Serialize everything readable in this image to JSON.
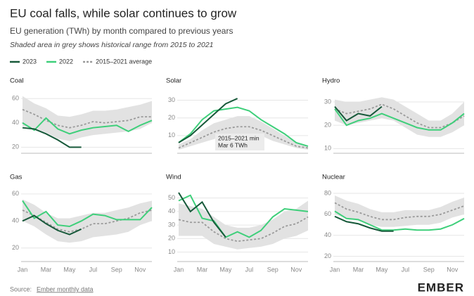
{
  "title": "EU coal falls, while solar continues to grow",
  "subtitle": "EU generation (TWh) by month compared to previous years",
  "note": "Shaded area in grey shows historical range from 2015 to 2021",
  "legend": [
    {
      "name": "2023",
      "color": "#17593a"
    },
    {
      "name": "2022",
      "color": "#3ecf7a"
    },
    {
      "name": "2015–2021 average",
      "color": "#9a9a9a",
      "dash": true
    }
  ],
  "source": {
    "label": "Source:",
    "link": "Ember monthly data"
  },
  "logo": "EMBER",
  "range_color": "#e2e2e2",
  "chart_data": [
    {
      "type": "line",
      "title": "Coal",
      "ylim": [
        15,
        63
      ],
      "yticks": [
        20,
        40,
        60
      ],
      "grid": true,
      "range": {
        "low": [
          37,
          36,
          32,
          27,
          25,
          28,
          30,
          31,
          32,
          33,
          35,
          40
        ],
        "high": [
          62,
          56,
          52,
          46,
          45,
          47,
          50,
          50,
          51,
          53,
          55,
          58
        ]
      },
      "series": [
        {
          "color": "#9a9a9a",
          "dash": true,
          "values": [
            51,
            47,
            42,
            38,
            36,
            38,
            41,
            40,
            41,
            42,
            45,
            45
          ]
        },
        {
          "color": "#3ecf7a",
          "values": [
            40,
            34,
            44,
            35,
            31,
            34,
            36,
            37,
            38,
            33,
            38,
            42
          ]
        },
        {
          "color": "#17593a",
          "values": [
            36,
            35,
            31,
            26,
            20,
            20,
            null,
            null,
            null,
            null,
            null,
            null
          ]
        }
      ]
    },
    {
      "type": "line",
      "title": "Solar",
      "ylim": [
        0,
        33
      ],
      "yticks": [
        10,
        20,
        30
      ],
      "grid": true,
      "annotation": [
        "2015–2021 min",
        "Mar 6 TWh"
      ],
      "range": {
        "low": [
          2,
          4,
          6,
          8,
          10,
          11,
          11,
          10,
          7,
          5,
          3,
          2
        ],
        "high": [
          5,
          8,
          13,
          17,
          19,
          21,
          21,
          18,
          14,
          10,
          6,
          4
        ]
      },
      "series": [
        {
          "color": "#9a9a9a",
          "dash": true,
          "values": [
            3,
            6,
            9,
            12,
            14,
            15,
            15,
            13,
            10,
            7,
            4,
            3
          ]
        },
        {
          "color": "#3ecf7a",
          "values": [
            6,
            11,
            19,
            24,
            25,
            26,
            24,
            19,
            15,
            11,
            6,
            4
          ]
        },
        {
          "color": "#17593a",
          "values": [
            6,
            10,
            16,
            22,
            28,
            31,
            null,
            null,
            null,
            null,
            null,
            null
          ]
        }
      ]
    },
    {
      "type": "line",
      "title": "Hydro",
      "ylim": [
        8,
        33
      ],
      "yticks": [
        10,
        20,
        30
      ],
      "grid": true,
      "range": {
        "low": [
          22,
          20,
          21,
          22,
          23,
          22,
          19,
          16,
          15,
          15,
          17,
          20
        ],
        "high": [
          31,
          30,
          30,
          31,
          32,
          31,
          28,
          25,
          22,
          22,
          25,
          30
        ]
      },
      "series": [
        {
          "color": "#9a9a9a",
          "dash": true,
          "values": [
            27,
            25,
            26,
            27,
            29,
            27,
            24,
            21,
            19,
            19,
            21,
            24
          ]
        },
        {
          "color": "#3ecf7a",
          "values": [
            27,
            20,
            22,
            23,
            25,
            23,
            21,
            19,
            18,
            18,
            21,
            25
          ]
        },
        {
          "color": "#17593a",
          "values": [
            28,
            22,
            25,
            24,
            28,
            null,
            null,
            null,
            null,
            null,
            null,
            null
          ]
        }
      ]
    },
    {
      "type": "line",
      "title": "Gas",
      "ylim": [
        10,
        62
      ],
      "yticks": [
        20,
        40,
        60
      ],
      "grid": true,
      "categories": [
        "Jan",
        null,
        "Mar",
        null,
        "May",
        null,
        "Jul",
        null,
        "Sep",
        null,
        "Nov",
        null
      ],
      "range": {
        "low": [
          40,
          36,
          30,
          25,
          24,
          25,
          28,
          29,
          30,
          32,
          37,
          40
        ],
        "high": [
          56,
          52,
          46,
          42,
          42,
          44,
          46,
          46,
          48,
          50,
          53,
          55
        ]
      },
      "series": [
        {
          "color": "#9a9a9a",
          "dash": true,
          "values": [
            48,
            44,
            39,
            34,
            32,
            34,
            38,
            38,
            40,
            42,
            46,
            48
          ]
        },
        {
          "color": "#3ecf7a",
          "values": [
            55,
            42,
            47,
            37,
            36,
            40,
            45,
            44,
            41,
            41,
            41,
            50
          ]
        },
        {
          "color": "#17593a",
          "values": [
            40,
            44,
            38,
            33,
            30,
            34,
            null,
            null,
            null,
            null,
            null,
            null
          ]
        }
      ]
    },
    {
      "type": "line",
      "title": "Wind",
      "ylim": [
        3,
        55
      ],
      "yticks": [
        10,
        20,
        30,
        40,
        50
      ],
      "grid": true,
      "categories": [
        "Jan",
        null,
        "Mar",
        null,
        "May",
        null,
        "Jul",
        null,
        "Sep",
        null,
        "Nov",
        null
      ],
      "range": {
        "low": [
          22,
          22,
          22,
          16,
          14,
          12,
          13,
          14,
          16,
          20,
          22,
          26
        ],
        "high": [
          46,
          44,
          42,
          36,
          30,
          28,
          28,
          30,
          34,
          40,
          42,
          48
        ]
      },
      "series": [
        {
          "color": "#9a9a9a",
          "dash": true,
          "values": [
            34,
            32,
            32,
            25,
            20,
            18,
            19,
            20,
            24,
            29,
            31,
            36
          ]
        },
        {
          "color": "#3ecf7a",
          "values": [
            48,
            52,
            35,
            33,
            21,
            25,
            21,
            26,
            36,
            42,
            41,
            40
          ]
        },
        {
          "color": "#17593a",
          "values": [
            54,
            40,
            47,
            32,
            21,
            null,
            null,
            null,
            null,
            null,
            null,
            null
          ]
        }
      ]
    },
    {
      "type": "line",
      "title": "Nuclear",
      "ylim": [
        15,
        82
      ],
      "yticks": [
        20,
        40,
        60,
        80
      ],
      "grid": true,
      "categories": [
        "Jan",
        null,
        "Mar",
        null,
        "May",
        null,
        "Jul",
        null,
        "Sep",
        null,
        "Nov",
        null
      ],
      "range": {
        "low": [
          60,
          56,
          54,
          50,
          48,
          48,
          49,
          50,
          50,
          52,
          57,
          60
        ],
        "high": [
          78,
          73,
          70,
          65,
          62,
          62,
          64,
          64,
          64,
          67,
          72,
          76
        ]
      },
      "series": [
        {
          "color": "#9a9a9a",
          "dash": true,
          "values": [
            71,
            65,
            62,
            58,
            55,
            55,
            57,
            58,
            58,
            60,
            64,
            68
          ]
        },
        {
          "color": "#3ecf7a",
          "values": [
            63,
            56,
            55,
            50,
            45,
            45,
            46,
            45,
            45,
            46,
            50,
            56
          ]
        },
        {
          "color": "#17593a",
          "values": [
            58,
            53,
            51,
            47,
            44,
            44,
            null,
            null,
            null,
            null,
            null,
            null
          ]
        }
      ]
    }
  ]
}
